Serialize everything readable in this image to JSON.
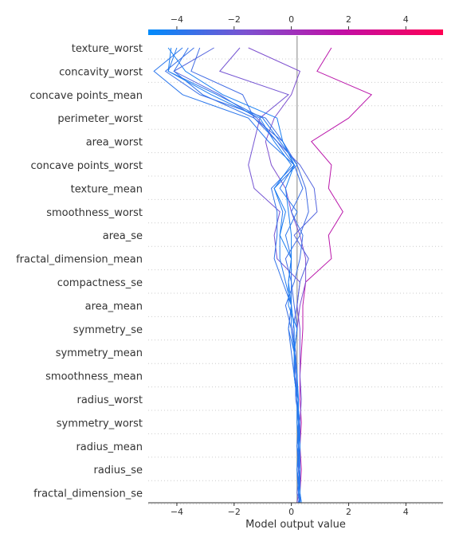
{
  "chart_data": {
    "type": "line",
    "title": "",
    "xlabel": "Model output value",
    "ylabel": "",
    "xlim": [
      -5.0,
      5.3
    ],
    "xticks": [
      "-4",
      "-2",
      "0",
      "2",
      "4"
    ],
    "tick_values": [
      -4,
      -2,
      0,
      2,
      4
    ],
    "base_value": 0.2,
    "colormap": [
      "#008bfb",
      "#7c52d0",
      "#c20fa5",
      "#ff0052"
    ],
    "features": [
      "texture_worst",
      "concavity_worst",
      "concave points_mean",
      "perimeter_worst",
      "area_worst",
      "concave points_worst",
      "texture_mean",
      "smoothness_worst",
      "area_se",
      "fractal_dimension_mean",
      "compactness_se",
      "area_mean",
      "symmetry_se",
      "symmetry_mean",
      "smoothness_mean",
      "radius_worst",
      "symmetry_worst",
      "radius_mean",
      "radius_se",
      "fractal_dimension_se"
    ],
    "y_levels": [
      "start",
      "fractal_dimension_se",
      "radius_se",
      "radius_mean",
      "symmetry_worst",
      "radius_worst",
      "smoothness_mean",
      "symmetry_mean",
      "symmetry_se",
      "area_mean",
      "compactness_se",
      "fractal_dimension_mean",
      "area_se",
      "smoothness_worst",
      "texture_mean",
      "concave points_worst",
      "area_worst",
      "perimeter_worst",
      "concave points_mean",
      "concavity_worst",
      "texture_worst"
    ],
    "series": [
      {
        "values": [
          0.3,
          0.3,
          0.35,
          0.3,
          0.35,
          0.3,
          0.3,
          0.35,
          0.4,
          0.4,
          0.5,
          1.4,
          1.3,
          1.8,
          1.3,
          1.4,
          0.7,
          2.0,
          2.8,
          0.9,
          1.4
        ]
      },
      {
        "values": [
          0.25,
          0.3,
          0.25,
          0.3,
          0.3,
          0.35,
          0.3,
          0.3,
          0.3,
          0.2,
          0.3,
          -0.5,
          -0.6,
          -0.4,
          -1.3,
          -1.5,
          -1.3,
          -1.1,
          -0.1,
          -2.5,
          -1.8
        ]
      },
      {
        "values": [
          0.2,
          0.25,
          0.2,
          0.3,
          0.25,
          0.2,
          0.15,
          0.1,
          0.2,
          0.3,
          0.5,
          0.5,
          0.3,
          0.0,
          -0.2,
          -0.7,
          -0.9,
          -0.6,
          0.0,
          0.3,
          -1.5
        ]
      },
      {
        "values": [
          0.25,
          0.3,
          0.25,
          0.2,
          0.3,
          0.15,
          0.15,
          0.1,
          0.2,
          0.1,
          0.0,
          -0.2,
          0.3,
          0.6,
          0.5,
          0.2,
          -0.3,
          -1.3,
          -1.7,
          -3.5,
          -3.2
        ]
      },
      {
        "values": [
          0.3,
          0.2,
          0.3,
          0.2,
          0.3,
          0.2,
          0.1,
          0.15,
          0.05,
          0.2,
          0.3,
          0.6,
          0.1,
          0.9,
          0.8,
          0.3,
          -0.5,
          -1.2,
          -2.5,
          -4.1,
          -2.7
        ]
      },
      {
        "values": [
          0.25,
          0.3,
          0.2,
          0.3,
          0.2,
          0.25,
          0.1,
          0.1,
          -0.1,
          0.0,
          0.0,
          0.0,
          -0.2,
          0.2,
          -0.4,
          0.1,
          -0.8,
          -1.5,
          -3.8,
          -4.8,
          -3.8
        ]
      },
      {
        "values": [
          0.3,
          0.25,
          0.3,
          0.2,
          0.25,
          0.2,
          0.2,
          0.1,
          0.0,
          0.0,
          -0.2,
          -0.4,
          -0.4,
          -0.3,
          -0.6,
          0.2,
          -0.4,
          -1.0,
          -2.6,
          -4.3,
          -4.0
        ]
      },
      {
        "values": [
          0.35,
          0.3,
          0.3,
          0.25,
          0.25,
          0.2,
          0.1,
          0.0,
          -0.1,
          0.0,
          -0.3,
          -0.6,
          -0.5,
          -0.5,
          -0.7,
          0.1,
          -0.5,
          -1.3,
          -3.1,
          -4.1,
          -3.6
        ]
      },
      {
        "values": [
          0.3,
          0.3,
          0.25,
          0.3,
          0.3,
          0.2,
          0.2,
          0.15,
          0.0,
          -0.2,
          0.1,
          0.3,
          0.4,
          0.0,
          0.4,
          0.1,
          -0.3,
          -0.9,
          -3.2,
          -4.4,
          -3.4
        ]
      },
      {
        "values": [
          0.35,
          0.3,
          0.3,
          0.3,
          0.25,
          0.25,
          0.2,
          0.1,
          0.2,
          -0.1,
          -0.1,
          0.0,
          0.0,
          -0.1,
          -0.2,
          0.1,
          -0.3,
          -0.5,
          -2.4,
          -3.7,
          -4.3
        ]
      },
      {
        "values": [
          0.3,
          0.25,
          0.2,
          0.25,
          0.2,
          0.2,
          0.1,
          0.1,
          0.1,
          0.0,
          -0.1,
          0.0,
          -0.4,
          -0.2,
          -0.6,
          0.0,
          -0.6,
          -1.1,
          -2.8,
          -4.3,
          -4.2
        ]
      }
    ]
  }
}
